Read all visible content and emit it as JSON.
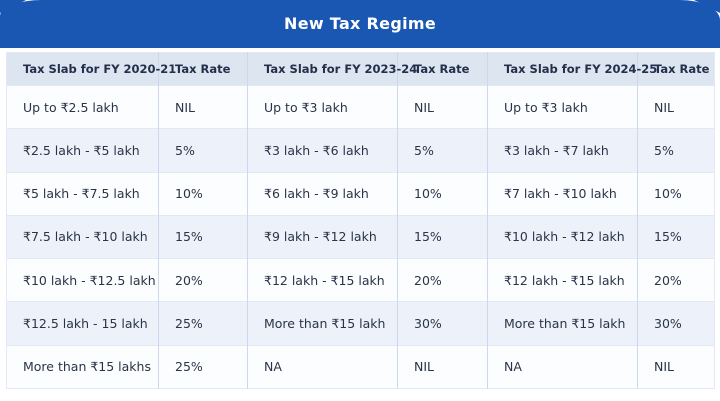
{
  "header": {
    "title": "New Tax Regime"
  },
  "colors": {
    "banner_blue": "#1a57b2",
    "title_text": "#ffffff",
    "header_row_bg": "#dde5f1",
    "row_bg": "#fcfdff",
    "row_alt_bg": "#edf2fa",
    "column_divider": "#ccd9ec",
    "row_divider": "#e2e9f3",
    "cell_text": "#2a3447"
  },
  "chart_data": {
    "type": "table",
    "title": "New Tax Regime",
    "columns": [
      "Tax Slab for FY 2020-21",
      "Tax Rate",
      "Tax Slab for FY 2023-24",
      "Tax Rate",
      "Tax Slab for FY 2024-25",
      "Tax Rate"
    ],
    "rows": [
      [
        "Up to ₹2.5 lakh",
        "NIL",
        "Up to ₹3 lakh",
        "NIL",
        "Up to ₹3 lakh",
        "NIL"
      ],
      [
        "₹2.5 lakh - ₹5 lakh",
        "5%",
        "₹3 lakh - ₹6 lakh",
        "5%",
        "₹3 lakh - ₹7 lakh",
        "5%"
      ],
      [
        "₹5 lakh - ₹7.5 lakh",
        "10%",
        "₹6 lakh - ₹9 lakh",
        "10%",
        "₹7 lakh - ₹10 lakh",
        "10%"
      ],
      [
        "₹7.5 lakh - ₹10 lakh",
        "15%",
        "₹9 lakh - ₹12 lakh",
        "15%",
        "₹10 lakh - ₹12 lakh",
        "15%"
      ],
      [
        "₹10 lakh - ₹12.5 lakh",
        "20%",
        "₹12 lakh - ₹15 lakh",
        "20%",
        "₹12 lakh - ₹15 lakh",
        "20%"
      ],
      [
        "₹12.5 lakh - 15 lakh",
        "25%",
        "More than ₹15 lakh",
        "30%",
        "More than ₹15 lakh",
        "30%"
      ],
      [
        "More than ₹15 lakhs",
        "25%",
        "NA",
        "NIL",
        "NA",
        "NIL"
      ]
    ]
  }
}
